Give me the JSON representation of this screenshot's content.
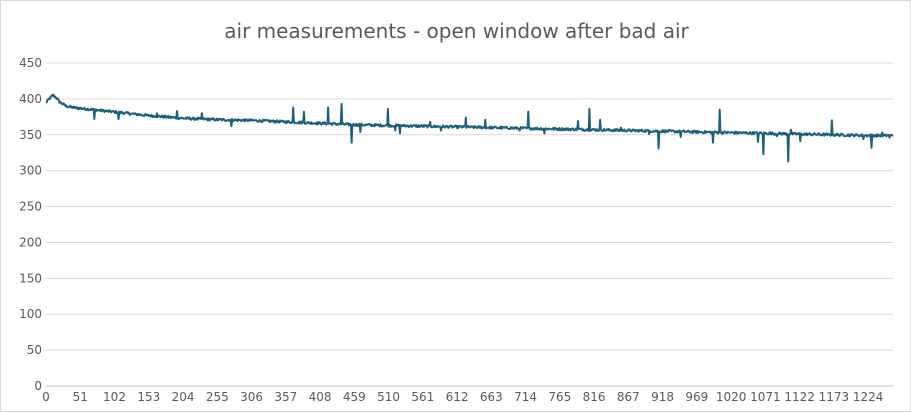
{
  "chart_data": {
    "type": "line",
    "title": "air measurements - open window after bad air",
    "xlabel": "",
    "ylabel": "",
    "ylim": [
      0,
      450
    ],
    "y_ticks": [
      0,
      50,
      100,
      150,
      200,
      250,
      300,
      350,
      400,
      450
    ],
    "x_ticks": [
      0,
      51,
      102,
      153,
      204,
      255,
      306,
      357,
      408,
      459,
      510,
      561,
      612,
      663,
      714,
      765,
      816,
      867,
      918,
      969,
      1020,
      1071,
      1122,
      1173,
      1224
    ],
    "x_range": [
      0,
      1261
    ],
    "grid": "horizontal",
    "legend": "none",
    "line_color": "#1f5f7a",
    "grid_color": "#d9d9d9",
    "trend_points": [
      [
        0,
        395
      ],
      [
        5,
        400
      ],
      [
        10,
        405
      ],
      [
        15,
        402
      ],
      [
        20,
        396
      ],
      [
        30,
        390
      ],
      [
        40,
        388
      ],
      [
        60,
        386
      ],
      [
        100,
        382
      ],
      [
        150,
        377
      ],
      [
        204,
        373
      ],
      [
        255,
        371
      ],
      [
        306,
        370
      ],
      [
        357,
        368
      ],
      [
        408,
        366
      ],
      [
        459,
        364
      ],
      [
        510,
        363
      ],
      [
        561,
        362
      ],
      [
        612,
        361
      ],
      [
        663,
        360
      ],
      [
        714,
        359
      ],
      [
        765,
        358
      ],
      [
        816,
        357
      ],
      [
        867,
        356
      ],
      [
        918,
        355
      ],
      [
        969,
        354
      ],
      [
        1020,
        353
      ],
      [
        1071,
        352
      ],
      [
        1122,
        351
      ],
      [
        1173,
        350
      ],
      [
        1224,
        349
      ],
      [
        1261,
        349
      ]
    ],
    "spikes": [
      [
        72,
        372
      ],
      [
        108,
        372
      ],
      [
        165,
        380
      ],
      [
        195,
        383
      ],
      [
        232,
        380
      ],
      [
        276,
        362
      ],
      [
        368,
        388
      ],
      [
        384,
        382
      ],
      [
        420,
        388
      ],
      [
        440,
        393
      ],
      [
        455,
        339
      ],
      [
        468,
        354
      ],
      [
        509,
        386
      ],
      [
        520,
        356
      ],
      [
        527,
        352
      ],
      [
        572,
        368
      ],
      [
        588,
        356
      ],
      [
        625,
        374
      ],
      [
        654,
        371
      ],
      [
        666,
        360
      ],
      [
        705,
        356
      ],
      [
        718,
        382
      ],
      [
        742,
        352
      ],
      [
        792,
        369
      ],
      [
        809,
        386
      ],
      [
        825,
        371
      ],
      [
        856,
        360
      ],
      [
        898,
        351
      ],
      [
        912,
        331
      ],
      [
        945,
        347
      ],
      [
        993,
        339
      ],
      [
        1003,
        385
      ],
      [
        1060,
        340
      ],
      [
        1068,
        323
      ],
      [
        1088,
        348
      ],
      [
        1105,
        313
      ],
      [
        1109,
        357
      ],
      [
        1123,
        341
      ],
      [
        1170,
        370
      ],
      [
        1200,
        350
      ],
      [
        1217,
        344
      ],
      [
        1229,
        332
      ],
      [
        1245,
        353
      ],
      [
        1256,
        346
      ]
    ]
  }
}
